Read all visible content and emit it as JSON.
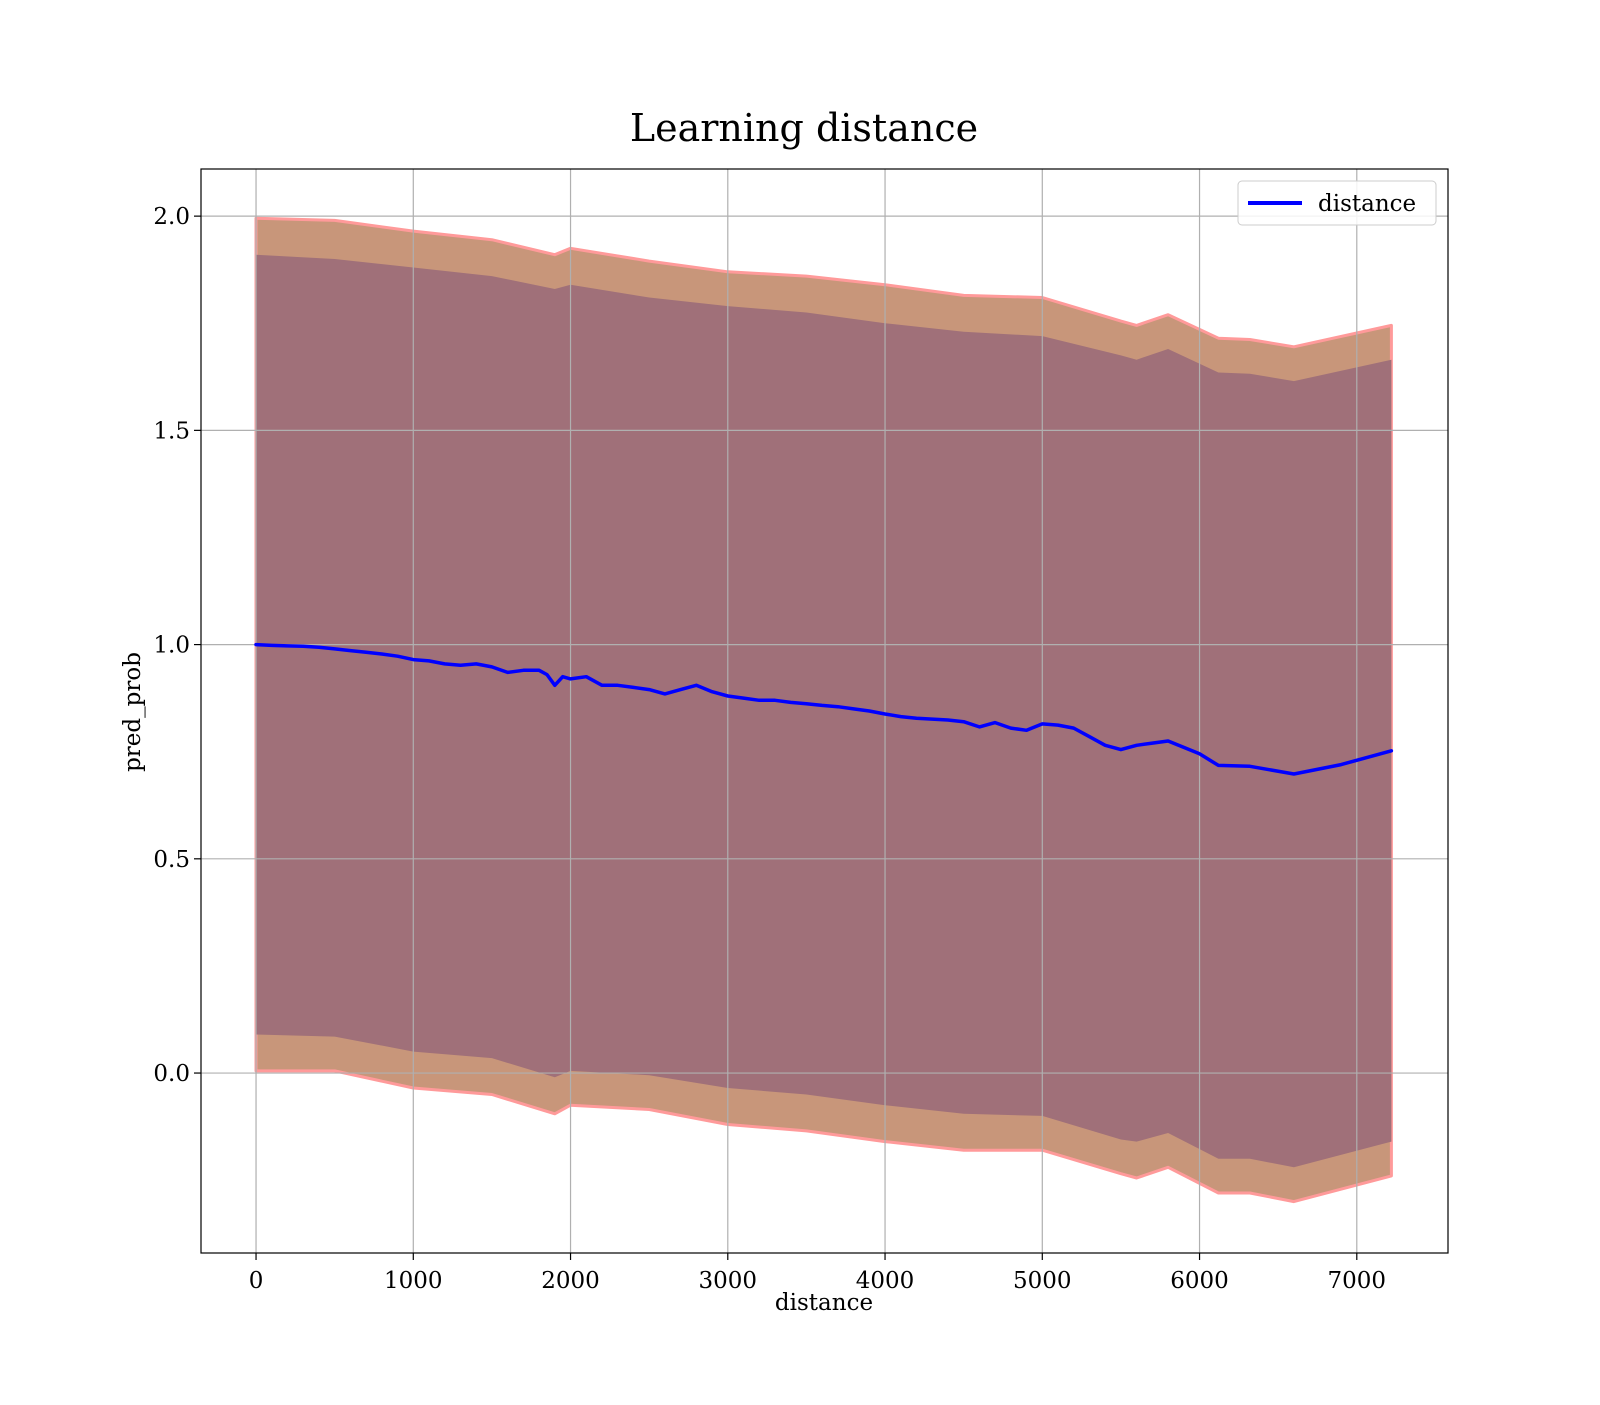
{
  "chart_data": {
    "type": "line",
    "title": "Learning distance",
    "xlabel": "distance",
    "ylabel": "pred_prob",
    "xlim": [
      -350,
      7580
    ],
    "ylim": [
      -0.42,
      2.11
    ],
    "grid": true,
    "legend_placement": "top-right",
    "x_ticks": [
      0,
      1000,
      2000,
      3000,
      4000,
      5000,
      6000,
      7000
    ],
    "x_tick_labels": [
      "0",
      "1000",
      "2000",
      "3000",
      "4000",
      "5000",
      "6000",
      "7000"
    ],
    "y_ticks": [
      0.0,
      0.5,
      1.0,
      1.5,
      2.0
    ],
    "y_tick_labels": [
      "0.0",
      "0.5",
      "1.0",
      "1.5",
      "2.0"
    ],
    "series": [
      {
        "name": "distance",
        "color": "#0000ff",
        "x": [
          0,
          100,
          200,
          300,
          400,
          500,
          600,
          700,
          800,
          900,
          1000,
          1100,
          1200,
          1300,
          1400,
          1500,
          1600,
          1700,
          1800,
          1850,
          1900,
          1950,
          2000,
          2100,
          2200,
          2300,
          2400,
          2500,
          2600,
          2700,
          2800,
          2900,
          3000,
          3100,
          3200,
          3300,
          3400,
          3500,
          3600,
          3700,
          3800,
          3900,
          4000,
          4100,
          4200,
          4300,
          4400,
          4500,
          4600,
          4700,
          4800,
          4900,
          5000,
          5100,
          5200,
          5300,
          5400,
          5500,
          5600,
          5700,
          5800,
          5900,
          6000,
          6120,
          6320,
          6600,
          6900,
          7220
        ],
        "y": [
          1.0,
          0.998,
          0.997,
          0.996,
          0.994,
          0.99,
          0.986,
          0.982,
          0.978,
          0.973,
          0.965,
          0.962,
          0.955,
          0.952,
          0.955,
          0.948,
          0.935,
          0.94,
          0.94,
          0.93,
          0.905,
          0.925,
          0.92,
          0.925,
          0.905,
          0.905,
          0.9,
          0.895,
          0.885,
          0.895,
          0.905,
          0.89,
          0.88,
          0.875,
          0.87,
          0.87,
          0.865,
          0.862,
          0.858,
          0.855,
          0.85,
          0.845,
          0.838,
          0.832,
          0.828,
          0.826,
          0.824,
          0.82,
          0.808,
          0.818,
          0.805,
          0.8,
          0.815,
          0.812,
          0.805,
          0.785,
          0.765,
          0.755,
          0.765,
          0.77,
          0.775,
          0.76,
          0.745,
          0.718,
          0.716,
          0.698,
          0.72,
          0.752
        ]
      }
    ],
    "bands": [
      {
        "description_role": "outer band (mean ± wider spread)",
        "fill_color": "#c8967a",
        "edge_color": "#ff9a9a",
        "x": [
          0,
          500,
          1000,
          1500,
          1900,
          2000,
          2500,
          3000,
          3500,
          4000,
          4500,
          5000,
          5500,
          5600,
          5800,
          6120,
          6320,
          6600,
          7220
        ],
        "upper": [
          1.995,
          1.99,
          1.965,
          1.945,
          1.91,
          1.925,
          1.895,
          1.87,
          1.86,
          1.84,
          1.815,
          1.81,
          1.755,
          1.745,
          1.77,
          1.715,
          1.712,
          1.695,
          1.745
        ],
        "lower": [
          0.005,
          0.005,
          -0.035,
          -0.05,
          -0.095,
          -0.075,
          -0.085,
          -0.12,
          -0.135,
          -0.16,
          -0.18,
          -0.18,
          -0.235,
          -0.245,
          -0.22,
          -0.28,
          -0.28,
          -0.3,
          -0.24
        ]
      },
      {
        "description_role": "inner band (mean ± narrower spread)",
        "fill_color": "#a07079",
        "x": [
          0,
          500,
          1000,
          1500,
          1900,
          2000,
          2500,
          3000,
          3500,
          4000,
          4500,
          5000,
          5500,
          5600,
          5800,
          6120,
          6320,
          6600,
          7220
        ],
        "upper": [
          1.91,
          1.9,
          1.88,
          1.86,
          1.83,
          1.84,
          1.81,
          1.79,
          1.775,
          1.75,
          1.73,
          1.72,
          1.675,
          1.665,
          1.69,
          1.635,
          1.632,
          1.615,
          1.665
        ],
        "lower": [
          0.09,
          0.085,
          0.05,
          0.035,
          -0.01,
          0.005,
          -0.005,
          -0.035,
          -0.05,
          -0.075,
          -0.095,
          -0.1,
          -0.155,
          -0.16,
          -0.14,
          -0.2,
          -0.2,
          -0.22,
          -0.16
        ]
      }
    ]
  }
}
